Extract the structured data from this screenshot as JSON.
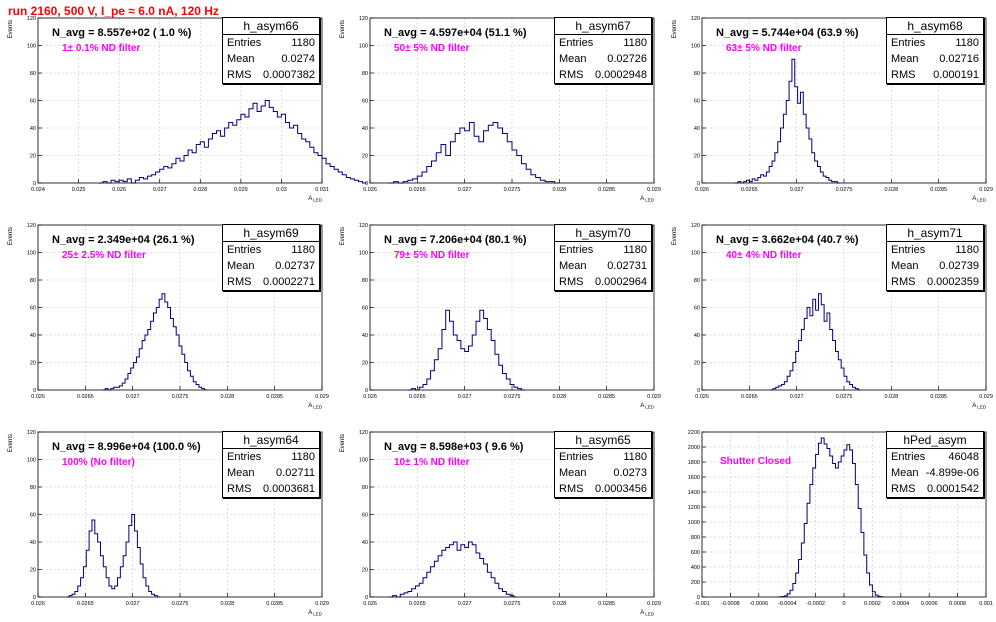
{
  "title": "run 2160,    500 V, I_pe ≈ 6.0 nA, 120 Hz",
  "colors": {
    "title": "#ff0000",
    "histogram": "#000080",
    "filter_label": "#ff00ff",
    "grid": "#c8c8c8"
  },
  "chart_data": [
    {
      "type": "bar",
      "name": "h_asym66",
      "n_avg_label": "N_avg = 8.557e+02 ( 1.0 %)",
      "filter_label": "1± 0.1% ND filter",
      "stats": {
        "entries": "1180",
        "mean": "0.0274",
        "rms": "0.0007382"
      },
      "xlabel": "A",
      "xlabel_sub": "LED",
      "ylabel": "Events",
      "xlim": [
        0.024,
        0.031
      ],
      "ylim": [
        0,
        120
      ],
      "xticks": [
        "0.024",
        "0.025",
        "0.026",
        "0.027",
        "0.028",
        "0.029",
        "0.03",
        "0.031"
      ],
      "yticks": [
        "0",
        "20",
        "40",
        "60",
        "80",
        "100",
        "120"
      ],
      "bins": {
        "x0": 0.0255,
        "width": 0.0001,
        "values": [
          0,
          1,
          0,
          2,
          1,
          2,
          1,
          3,
          0,
          2,
          4,
          3,
          5,
          6,
          8,
          10,
          12,
          11,
          14,
          18,
          16,
          20,
          24,
          22,
          28,
          30,
          26,
          32,
          36,
          38,
          34,
          40,
          44,
          42,
          46,
          50,
          48,
          54,
          58,
          52,
          56,
          60,
          55,
          52,
          48,
          50,
          44,
          40,
          42,
          36,
          32,
          30,
          26,
          22,
          20,
          18,
          14,
          12,
          10,
          8,
          6,
          4,
          3,
          2,
          1,
          0
        ]
      }
    },
    {
      "type": "bar",
      "name": "h_asym67",
      "n_avg_label": "N_avg = 4.597e+04 (51.1 %)",
      "filter_label": "50± 5% ND filter",
      "stats": {
        "entries": "1180",
        "mean": "0.02726",
        "rms": "0.0002948"
      },
      "xlabel": "A",
      "xlabel_sub": "LED",
      "ylabel": "Events",
      "xlim": [
        0.026,
        0.029
      ],
      "ylim": [
        0,
        120
      ],
      "xticks": [
        "0.026",
        "0.0265",
        "0.027",
        "0.0275",
        "0.028",
        "0.0285",
        "0.029"
      ],
      "yticks": [
        "0",
        "20",
        "40",
        "60",
        "80",
        "100",
        "120"
      ],
      "bins": {
        "x0": 0.0262,
        "width": 5e-05,
        "values": [
          0,
          1,
          0,
          1,
          2,
          3,
          5,
          8,
          12,
          16,
          22,
          28,
          20,
          30,
          36,
          40,
          38,
          44,
          34,
          30,
          38,
          42,
          44,
          40,
          36,
          30,
          24,
          20,
          14,
          10,
          6,
          4,
          2,
          1,
          1,
          0
        ]
      }
    },
    {
      "type": "bar",
      "name": "h_asym68",
      "n_avg_label": "N_avg = 5.744e+04 (63.9 %)",
      "filter_label": "63± 5% ND filter",
      "stats": {
        "entries": "1180",
        "mean": "0.02716",
        "rms": "0.000191"
      },
      "xlabel": "A",
      "xlabel_sub": "LED",
      "ylabel": "Events",
      "xlim": [
        0.026,
        0.029
      ],
      "ylim": [
        0,
        120
      ],
      "xticks": [
        "0.026",
        "0.0265",
        "0.027",
        "0.0275",
        "0.028",
        "0.0285",
        "0.029"
      ],
      "yticks": [
        "0",
        "20",
        "40",
        "60",
        "80",
        "100",
        "120"
      ],
      "bins": {
        "x0": 0.02635,
        "width": 3e-05,
        "values": [
          0,
          1,
          0,
          1,
          2,
          1,
          3,
          2,
          4,
          6,
          5,
          8,
          12,
          16,
          22,
          30,
          40,
          50,
          60,
          74,
          90,
          70,
          58,
          66,
          50,
          40,
          32,
          22,
          16,
          12,
          8,
          5,
          4,
          2,
          1,
          1,
          0
        ]
      }
    },
    {
      "type": "bar",
      "name": "h_asym69",
      "n_avg_label": "N_avg = 2.349e+04 (26.1 %)",
      "filter_label": "25± 2.5% ND filter",
      "stats": {
        "entries": "1180",
        "mean": "0.02737",
        "rms": "0.0002271"
      },
      "xlabel": "A",
      "xlabel_sub": "LED",
      "ylabel": "Events",
      "xlim": [
        0.026,
        0.029
      ],
      "ylim": [
        0,
        120
      ],
      "xticks": [
        "0.026",
        "0.0265",
        "0.027",
        "0.0275",
        "0.028",
        "0.0285",
        "0.029"
      ],
      "yticks": [
        "0",
        "20",
        "40",
        "60",
        "80",
        "100",
        "120"
      ],
      "bins": {
        "x0": 0.02668,
        "width": 3e-05,
        "values": [
          0,
          1,
          0,
          1,
          2,
          2,
          3,
          5,
          8,
          12,
          16,
          20,
          24,
          30,
          36,
          40,
          44,
          50,
          56,
          60,
          66,
          70,
          64,
          60,
          52,
          46,
          40,
          32,
          26,
          20,
          14,
          10,
          6,
          4,
          2,
          1,
          0
        ]
      }
    },
    {
      "type": "bar",
      "name": "h_asym70",
      "n_avg_label": "N_avg = 7.206e+04 (80.1 %)",
      "filter_label": "79± 5% ND filter",
      "stats": {
        "entries": "1180",
        "mean": "0.02731",
        "rms": "0.0002964"
      },
      "xlabel": "A",
      "xlabel_sub": "LED",
      "ylabel": "Events",
      "xlim": [
        0.026,
        0.029
      ],
      "ylim": [
        0,
        120
      ],
      "xticks": [
        "0.026",
        "0.0265",
        "0.027",
        "0.0275",
        "0.028",
        "0.0285",
        "0.029"
      ],
      "yticks": [
        "0",
        "20",
        "40",
        "60",
        "80",
        "100",
        "120"
      ],
      "bins": {
        "x0": 0.0264,
        "width": 4e-05,
        "values": [
          0,
          1,
          0,
          2,
          4,
          8,
          14,
          22,
          30,
          44,
          58,
          50,
          40,
          36,
          30,
          28,
          32,
          40,
          50,
          58,
          52,
          44,
          36,
          26,
          18,
          12,
          8,
          4,
          2,
          1,
          0
        ]
      }
    },
    {
      "type": "bar",
      "name": "h_asym71",
      "n_avg_label": "N_avg = 3.662e+04 (40.7 %)",
      "filter_label": "40± 4% ND filter",
      "stats": {
        "entries": "1180",
        "mean": "0.02739",
        "rms": "0.0002359"
      },
      "xlabel": "A",
      "xlabel_sub": "LED",
      "ylabel": "Events",
      "xlim": [
        0.026,
        0.029
      ],
      "ylim": [
        0,
        120
      ],
      "xticks": [
        "0.026",
        "0.0265",
        "0.027",
        "0.0275",
        "0.028",
        "0.0285",
        "0.029"
      ],
      "yticks": [
        "0",
        "20",
        "40",
        "60",
        "80",
        "100",
        "120"
      ],
      "bins": {
        "x0": 0.02672,
        "width": 3e-05,
        "values": [
          0,
          1,
          2,
          3,
          4,
          6,
          10,
          14,
          20,
          28,
          36,
          44,
          52,
          60,
          54,
          66,
          58,
          70,
          62,
          50,
          56,
          44,
          36,
          28,
          22,
          16,
          10,
          6,
          4,
          2,
          1,
          0
        ]
      }
    },
    {
      "type": "bar",
      "name": "h_asym64",
      "n_avg_label": "N_avg = 8.996e+04 (100.0 %)",
      "filter_label": "100% (No filter)",
      "stats": {
        "entries": "1180",
        "mean": "0.02711",
        "rms": "0.0003681"
      },
      "xlabel": "A",
      "xlabel_sub": "LED",
      "ylabel": "Events",
      "xlim": [
        0.026,
        0.029
      ],
      "ylim": [
        0,
        120
      ],
      "xticks": [
        "0.026",
        "0.0265",
        "0.027",
        "0.0275",
        "0.028",
        "0.0285",
        "0.029"
      ],
      "yticks": [
        "0",
        "20",
        "40",
        "60",
        "80",
        "100",
        "120"
      ],
      "bins": {
        "x0": 0.0263,
        "width": 3e-05,
        "values": [
          0,
          1,
          2,
          4,
          8,
          14,
          22,
          34,
          48,
          56,
          46,
          40,
          30,
          22,
          14,
          8,
          6,
          8,
          14,
          22,
          30,
          40,
          52,
          60,
          48,
          36,
          24,
          14,
          8,
          4,
          2,
          1,
          0
        ]
      }
    },
    {
      "type": "bar",
      "name": "h_asym65",
      "n_avg_label": "N_avg = 8.598e+03 ( 9.6 %)",
      "filter_label": "10± 1% ND filter",
      "stats": {
        "entries": "1180",
        "mean": "0.0273",
        "rms": "0.0003456"
      },
      "xlabel": "A",
      "xlabel_sub": "LED",
      "ylabel": "Events",
      "xlim": [
        0.026,
        0.029
      ],
      "ylim": [
        0,
        120
      ],
      "xticks": [
        "0.026",
        "0.0265",
        "0.027",
        "0.0275",
        "0.028",
        "0.0285",
        "0.029"
      ],
      "yticks": [
        "0",
        "20",
        "40",
        "60",
        "80",
        "100",
        "120"
      ],
      "bins": {
        "x0": 0.0262,
        "width": 4e-05,
        "values": [
          0,
          1,
          0,
          2,
          3,
          4,
          6,
          8,
          10,
          14,
          18,
          22,
          26,
          30,
          34,
          36,
          38,
          40,
          34,
          38,
          36,
          40,
          38,
          32,
          28,
          24,
          18,
          14,
          10,
          6,
          4,
          2,
          1,
          0
        ]
      }
    },
    {
      "type": "bar",
      "name": "hPed_asym",
      "n_avg_label": "",
      "filter_label": "Shutter Closed",
      "stats": {
        "entries": "46048",
        "mean": "-4.899e-06",
        "rms": "0.0001542"
      },
      "xlabel": "",
      "xlabel_sub": "",
      "ylabel": "",
      "xlim": [
        -0.001,
        0.001
      ],
      "ylim": [
        0,
        2200
      ],
      "xticks": [
        "-0.001",
        "-0.0008",
        "-0.0006",
        "-0.0004",
        "-0.0002",
        "0",
        "0.0002",
        "0.0004",
        "0.0006",
        "0.0008",
        "0.001"
      ],
      "yticks": [
        "0",
        "200",
        "400",
        "600",
        "800",
        "1000",
        "1200",
        "1400",
        "1600",
        "1800",
        "2000",
        "2200"
      ],
      "bins": {
        "x0": -0.00046,
        "width": 2e-05,
        "values": [
          2,
          5,
          15,
          40,
          90,
          180,
          320,
          500,
          720,
          980,
          1250,
          1500,
          1720,
          1900,
          2050,
          2120,
          2040,
          1980,
          1880,
          1780,
          1720,
          1800,
          1880,
          1960,
          2030,
          1960,
          1780,
          1500,
          1180,
          860,
          560,
          320,
          160,
          70,
          25,
          8,
          2
        ]
      }
    }
  ]
}
